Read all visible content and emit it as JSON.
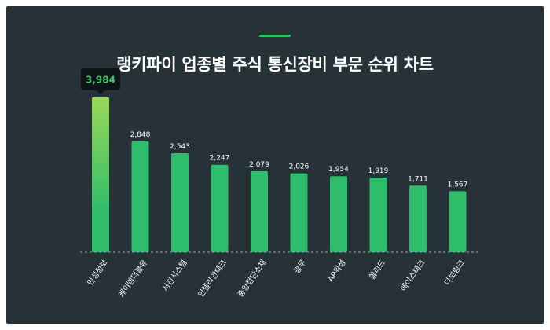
{
  "title": "랭키파이 업종별 주식 통신장비 부문 순위 차트",
  "colors": {
    "background": "#263238",
    "bar": "#2ebd6b",
    "top_bar_gradient_start": "#9bd85a",
    "accent": "#2ebd6b",
    "tooltip_bg": "#0f1417",
    "tooltip_text": "#3cc36f",
    "label_text": "#ffffff"
  },
  "chart_data": {
    "type": "bar",
    "title": "랭키파이 업종별 주식 통신장비 부문 순위 차트",
    "xlabel": "",
    "ylabel": "",
    "categories": [
      "인성정보",
      "케이엠더블유",
      "서진시스템",
      "인텔리안테크",
      "중앙첨단소재",
      "광무",
      "AP위성",
      "쏠리드",
      "에이스테크",
      "다보링크"
    ],
    "values": [
      3984,
      2848,
      2543,
      2247,
      2079,
      2026,
      1954,
      1919,
      1711,
      1567
    ],
    "value_labels": [
      "3,984",
      "2,848",
      "2,543",
      "2,247",
      "2,079",
      "2,026",
      "1,954",
      "1,919",
      "1,711",
      "1,567"
    ],
    "highlight_index": 0,
    "ylim": [
      0,
      4200
    ],
    "grid": false
  }
}
